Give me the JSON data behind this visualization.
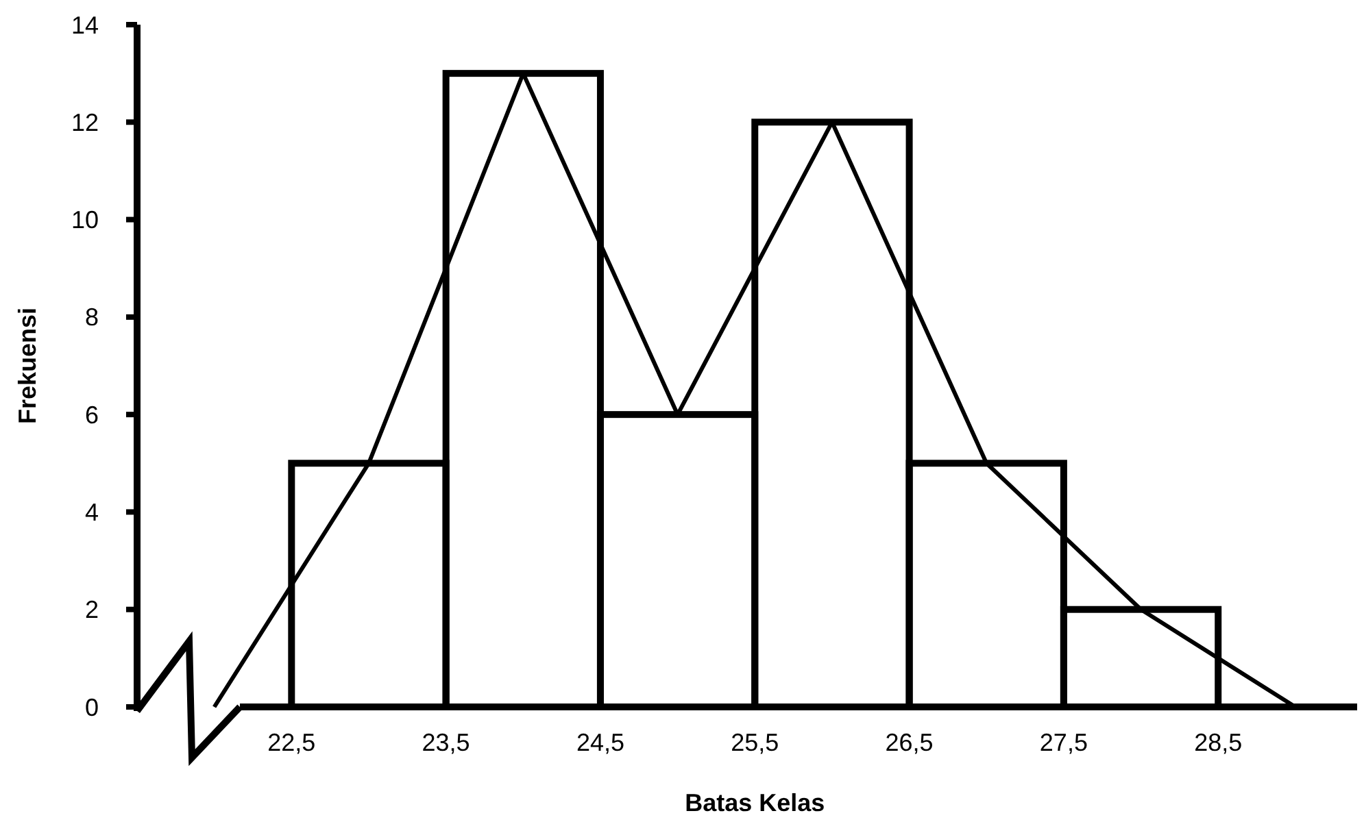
{
  "chart_data": {
    "type": "histogram",
    "xlabel": "Batas Kelas",
    "ylabel": "Frekuensi",
    "bins": [
      22.5,
      23.5,
      24.5,
      25.5,
      26.5,
      27.5,
      28.5
    ],
    "values": [
      5,
      13,
      6,
      12,
      5,
      2
    ],
    "color": "#000000",
    "series": [
      {
        "type": "line",
        "color": "#000000",
        "x": [
          22,
          23,
          24,
          25,
          26,
          27,
          28,
          29
        ],
        "values": [
          0,
          5,
          13,
          6,
          12,
          5,
          2,
          0
        ]
      }
    ],
    "xlim": [
      21.5,
      29.4
    ],
    "xticks": [
      {
        "value": 22.5,
        "label": "22,5"
      },
      {
        "value": 23.5,
        "label": "23,5"
      },
      {
        "value": 24.5,
        "label": "24,5"
      },
      {
        "value": 25.5,
        "label": "25,5"
      },
      {
        "value": 26.5,
        "label": "26,5"
      },
      {
        "value": 27.5,
        "label": "27,5"
      },
      {
        "value": 28.5,
        "label": "28,5"
      }
    ],
    "ylim": [
      0,
      14
    ],
    "yticks": [
      0,
      2,
      4,
      6,
      8,
      10,
      12,
      14
    ],
    "marker": "none",
    "line_style": "solid"
  }
}
